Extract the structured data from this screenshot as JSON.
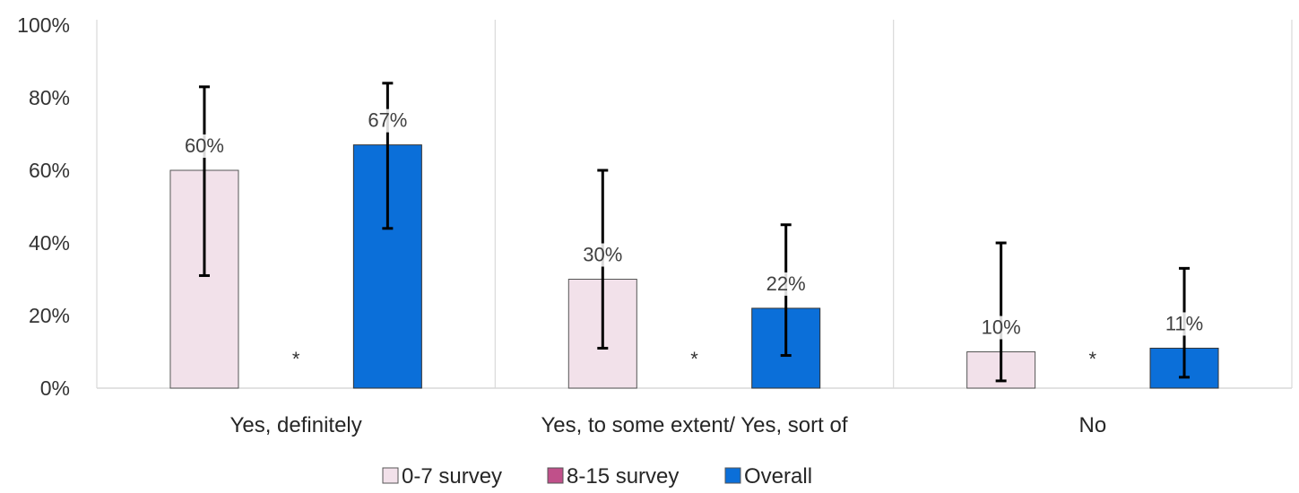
{
  "chart_data": {
    "type": "bar",
    "categories": [
      "Yes, definitely",
      "Yes, to some extent/ Yes, sort of",
      "No"
    ],
    "series": [
      {
        "name": "0-7 survey",
        "color": "#f2e1ea",
        "values": [
          60,
          30,
          10
        ],
        "labels": [
          "60%",
          "30%",
          "10%"
        ],
        "error_low": [
          31,
          11,
          2
        ],
        "error_high": [
          83,
          60,
          40
        ]
      },
      {
        "name": "8-15 survey",
        "color": "#c0508a",
        "values": [
          null,
          null,
          null
        ],
        "labels": [
          "*",
          "*",
          "*"
        ]
      },
      {
        "name": "Overall",
        "color": "#0b6fd9",
        "values": [
          67,
          22,
          11
        ],
        "labels": [
          "67%",
          "22%",
          "11%"
        ],
        "error_low": [
          44,
          9,
          3
        ],
        "error_high": [
          84,
          45,
          33
        ]
      }
    ],
    "y_axis": {
      "min": 0,
      "max": 100,
      "step": 20,
      "tick_labels": [
        "0%",
        "20%",
        "40%",
        "60%",
        "80%",
        "100%"
      ]
    },
    "legend_position": "bottom",
    "gridlines": "vertical category separators"
  }
}
